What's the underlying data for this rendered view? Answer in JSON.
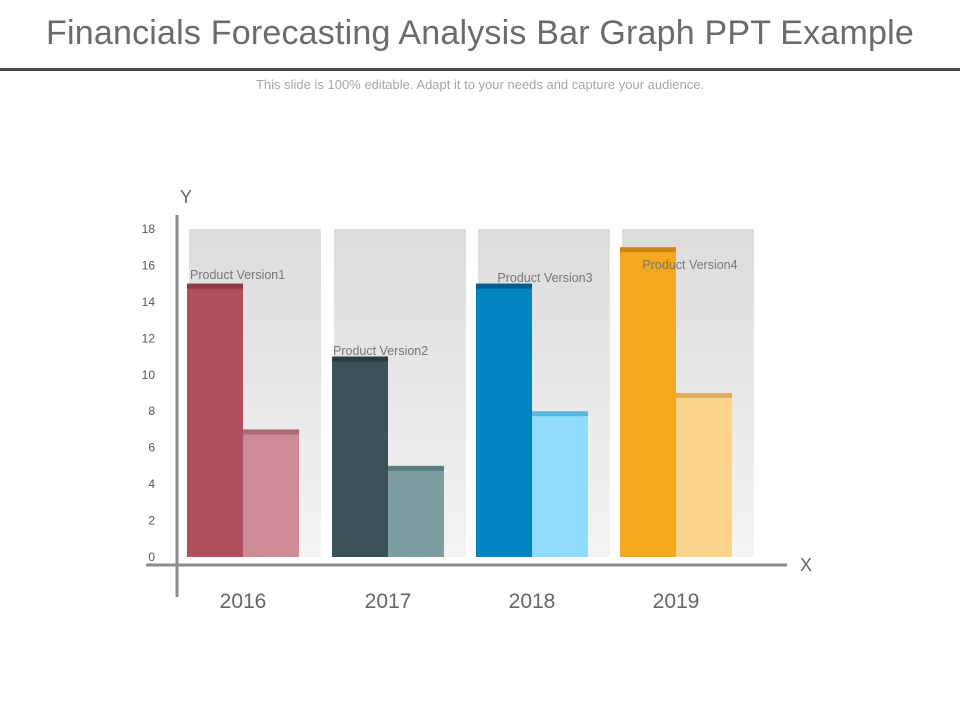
{
  "slide": {
    "title": "Financials Forecasting Analysis Bar Graph PPT Example",
    "subtitle": "This slide is 100% editable. Adapt it to your needs and capture your audience."
  },
  "chart_data": {
    "type": "bar",
    "categories": [
      "2016",
      "2017",
      "2018",
      "2019"
    ],
    "xlabel": "X",
    "ylabel": "Y",
    "ylim": [
      0,
      18
    ],
    "yticks": [
      0,
      2,
      4,
      6,
      8,
      10,
      12,
      14,
      16,
      18
    ],
    "background_column_max": 18,
    "grid": false,
    "series": [
      {
        "values": [
          15,
          11,
          15,
          17
        ]
      },
      {
        "values": [
          7,
          5,
          8,
          9
        ]
      }
    ],
    "annotations": [
      "Product Version1",
      "Product Version2",
      "Product Version3",
      "Product Version4"
    ],
    "colors": {
      "primary": [
        "#b04f5e",
        "#3c5259",
        "#0085c1",
        "#f4a81c"
      ],
      "primary_cap": [
        "#8e3a47",
        "#2a3b40",
        "#005f8f",
        "#c98510"
      ],
      "secondary": [
        "#cc8b96",
        "#7c9ea0",
        "#8fdcff",
        "#fbd48c"
      ],
      "secondary_cap": [
        "#a86a75",
        "#5e7c80",
        "#5db6df",
        "#e0b060"
      ],
      "column_bg_top": "#dcdcdc",
      "column_bg_bottom": "#f4f4f4",
      "axis": "#8c8c8c"
    }
  }
}
